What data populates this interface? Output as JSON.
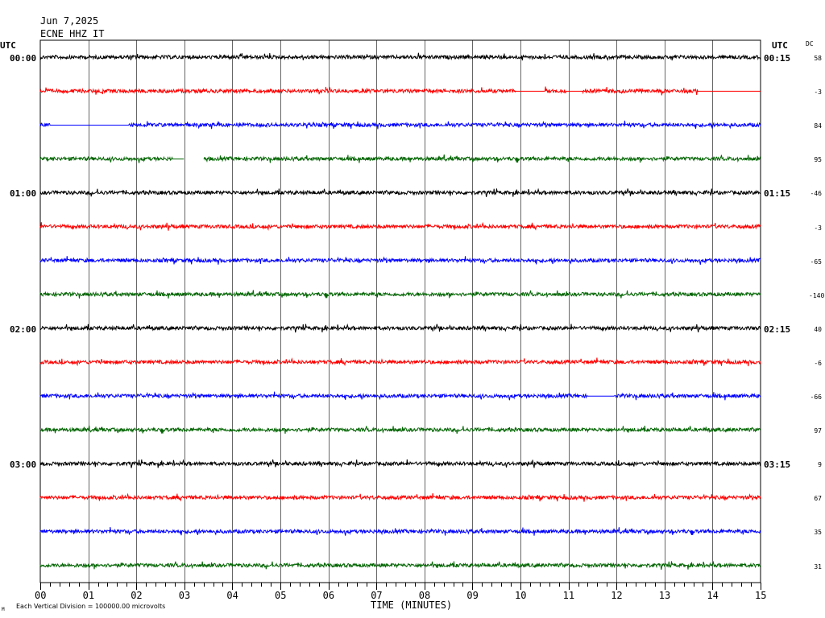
{
  "header": {
    "date": "Jun 7,2025",
    "station": "ECNE HHZ IT"
  },
  "left_axis_title": "UTC",
  "right_axis_title": "UTC",
  "dc_title": "DC",
  "chart_data": {
    "type": "line",
    "title": "Jun 7,2025 ECNE HHZ IT",
    "xlabel": "TIME (MINUTES)",
    "xlim": [
      0,
      15
    ],
    "x_tick_labels": [
      "00",
      "01",
      "02",
      "03",
      "04",
      "05",
      "06",
      "07",
      "08",
      "09",
      "10",
      "11",
      "12",
      "13",
      "14",
      "15"
    ],
    "left_time_labels": [
      "00:00",
      "01:00",
      "02:00",
      "03:00"
    ],
    "right_time_labels": [
      "00:15",
      "01:15",
      "02:15",
      "03:15"
    ],
    "trace_colors": [
      "#000000",
      "#ff0000",
      "#0000ff",
      "#006400"
    ],
    "dc_offsets": [
      "58",
      "-3",
      "84",
      "95",
      "-46",
      "-3",
      "-65",
      "-140",
      "40",
      "-6",
      "-66",
      "97",
      "9",
      "67",
      "35",
      "31"
    ],
    "gaps_minutes": [
      {
        "trace": 1,
        "flat": [
          [
            9.9,
            10.5
          ],
          [
            10.95,
            11.3
          ],
          [
            13.7,
            15.0
          ]
        ]
      },
      {
        "trace": 2,
        "flat": [
          [
            0.2,
            1.85
          ]
        ]
      },
      {
        "trace": 3,
        "flat": [
          [
            2.75,
            3.0
          ]
        ],
        "missing": [
          [
            3.0,
            3.4
          ]
        ]
      },
      {
        "trace": 10,
        "flat": [
          [
            11.4,
            11.95
          ]
        ]
      }
    ],
    "scale_note": "Each Vertical Division = 100000.00 microvolts",
    "grid": true
  },
  "footer_note": "Each Vertical Division = 100000.00 microvolts",
  "corner_mark": "M"
}
